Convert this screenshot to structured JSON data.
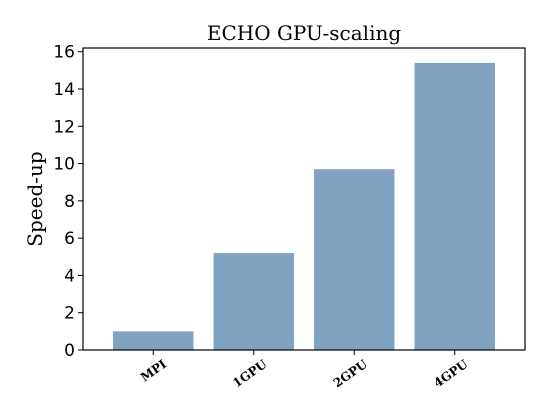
{
  "chart_data": {
    "type": "bar",
    "title": "ECHO GPU-scaling",
    "xlabel": "",
    "ylabel": "Speed-up",
    "categories": [
      "MPI",
      "1GPU",
      "2GPU",
      "4GPU"
    ],
    "values": [
      1.0,
      5.2,
      9.7,
      15.4
    ],
    "ylim": [
      0,
      16.2
    ],
    "yticks": [
      0,
      2,
      4,
      6,
      8,
      10,
      12,
      14,
      16
    ],
    "grid": false,
    "bar_color": "#82a2c1"
  }
}
